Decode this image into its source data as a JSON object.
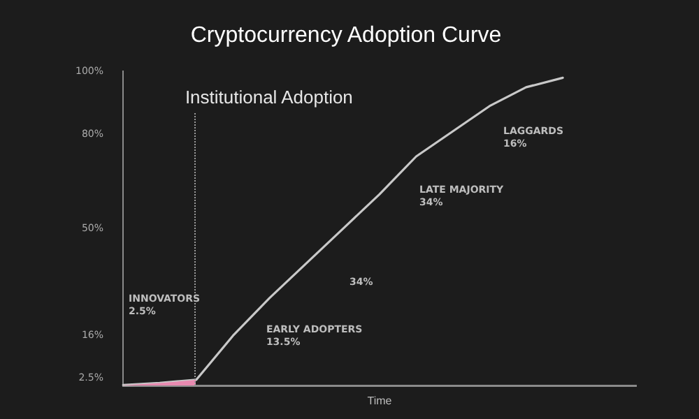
{
  "chart_data": {
    "type": "line",
    "title": "Cryptocurrency Adoption Curve",
    "xlabel": "Time",
    "categories": [
      null,
      null,
      null,
      null,
      null,
      null,
      null,
      null,
      null,
      null,
      null,
      null,
      null,
      null,
      null
    ],
    "series": [
      {
        "color": "#c8c8c8",
        "values": [
          0.3,
          1,
          2,
          16,
          28,
          39,
          50,
          61,
          73,
          81,
          89,
          95,
          98,
          null,
          null
        ]
      }
    ],
    "ylim": [
      0,
      100
    ],
    "yticks": [
      {
        "value": 2.5,
        "label": "2.5%"
      },
      {
        "value": 16,
        "label": "16%"
      },
      {
        "value": 50,
        "label": "50%"
      },
      {
        "value": 80,
        "label": "80%"
      },
      {
        "value": 100,
        "label": "100%"
      }
    ],
    "annotations": [
      "Institutional Adoption",
      "INNOVATORS 2.5%",
      "EARLY ADOPTERS 13.5%",
      "34%",
      "LATE MAJORITY 34%",
      "LAGGARDS 16%"
    ],
    "grid": false,
    "legend": false,
    "tick_labels": "y",
    "marker": "none",
    "line_style": "solid"
  }
}
